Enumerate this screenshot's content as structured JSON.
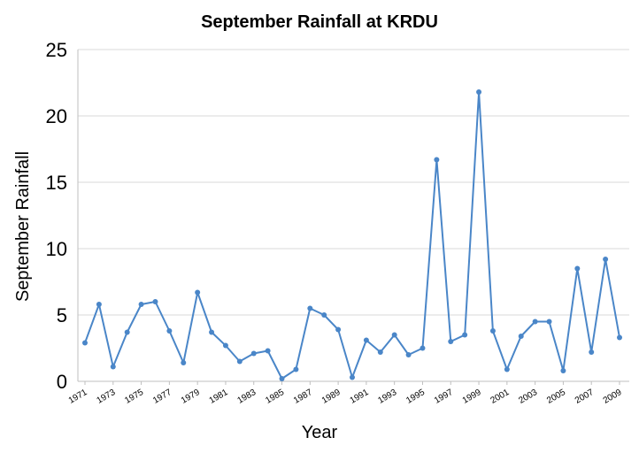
{
  "chart_data": {
    "type": "line",
    "title": "September Rainfall at KRDU",
    "xlabel": "Year",
    "ylabel": "September Rainfall",
    "ylim": [
      0,
      25
    ],
    "yticks": [
      0,
      5,
      10,
      15,
      20,
      25
    ],
    "xtick_labels": [
      "1971",
      "1973",
      "1975",
      "1977",
      "1979",
      "1981",
      "1983",
      "1985",
      "1987",
      "1989",
      "1991",
      "1993",
      "1995",
      "1997",
      "1999",
      "2001",
      "2003",
      "2005",
      "2007",
      "2009"
    ],
    "grid": true,
    "legend": "none",
    "line_color": "#4a86c8",
    "x": [
      1971,
      1972,
      1973,
      1974,
      1975,
      1976,
      1977,
      1978,
      1979,
      1980,
      1981,
      1982,
      1983,
      1984,
      1985,
      1986,
      1987,
      1988,
      1989,
      1990,
      1991,
      1992,
      1993,
      1994,
      1995,
      1996,
      1997,
      1998,
      1999,
      2000,
      2001,
      2002,
      2003,
      2004,
      2005,
      2006,
      2007,
      2008,
      2009
    ],
    "values": [
      2.9,
      5.8,
      1.1,
      3.7,
      5.8,
      6.0,
      3.8,
      1.4,
      6.7,
      3.7,
      2.7,
      1.5,
      2.1,
      2.3,
      0.2,
      0.9,
      5.5,
      5.0,
      3.9,
      0.3,
      3.1,
      2.2,
      3.5,
      2.0,
      2.5,
      16.7,
      3.0,
      3.5,
      21.8,
      3.8,
      0.9,
      3.4,
      4.5,
      4.5,
      0.8,
      8.5,
      2.2,
      9.2,
      3.3
    ]
  }
}
